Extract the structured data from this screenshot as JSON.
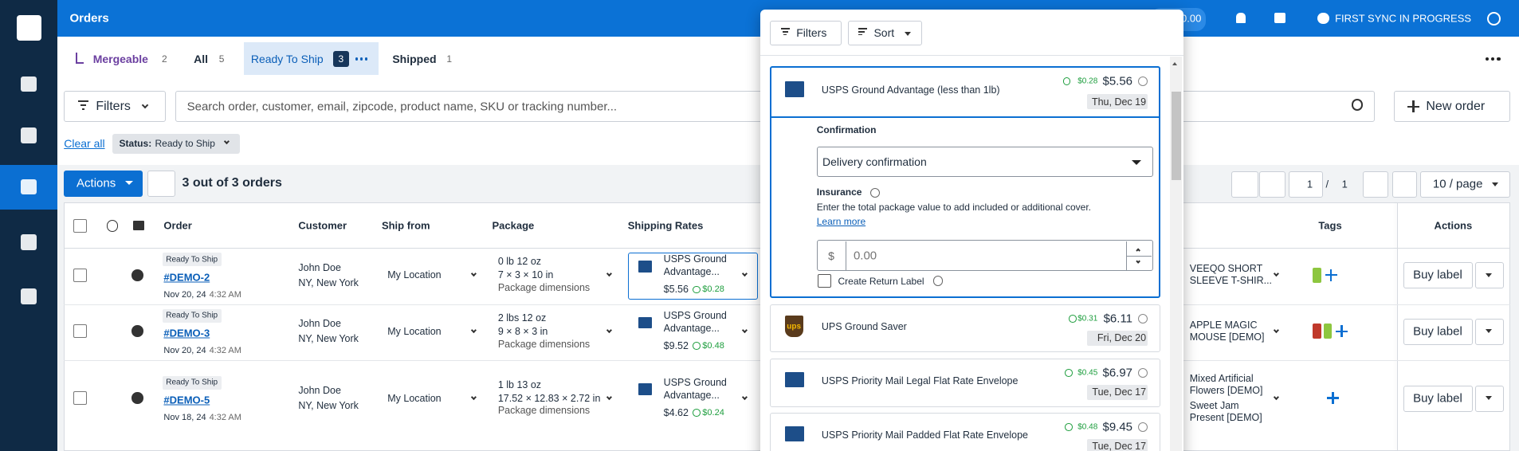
{
  "topbar": {
    "title": "Orders",
    "balance": "0.00",
    "sync_status": "FIRST SYNC IN PROGRESS"
  },
  "tabs": [
    {
      "label": "Mergeable",
      "count": 2
    },
    {
      "label": "All",
      "count": 5
    },
    {
      "label": "Ready To Ship",
      "count": 3
    },
    {
      "label": "Shipped",
      "count": 1
    }
  ],
  "toolbar": {
    "filters": "Filters",
    "search_placeholder": "Search order, customer, email, zipcode, product name, SKU or tracking number...",
    "new_order": "New order"
  },
  "active_filters": {
    "clear_all": "Clear all",
    "status_label": "Status:",
    "status_value": "Ready to Ship"
  },
  "list_bar": {
    "actions": "Actions",
    "summary": "3 out of 3 orders",
    "page": 1,
    "separator": "/",
    "page_count": 1,
    "page_size": "10 / page"
  },
  "table": {
    "columns": {
      "order": "Order",
      "customer": "Customer",
      "ship_from": "Ship from",
      "package": "Package",
      "shipping_rates": "Shipping Rates",
      "tags": "Tags",
      "actions": "Actions"
    },
    "rows": [
      {
        "status": "Ready To Ship",
        "order": "#DEMO-2",
        "date": "Nov 20, 24",
        "time": "4:32 AM",
        "customer": "John Doe",
        "location": "NY, New York",
        "ship_from": "My Location",
        "weight": "0 lb 12 oz",
        "dimensions": "7 × 3 × 10 in",
        "dimensions_label": "Package dimensions",
        "rate_service": "USPS Ground Advantage...",
        "rate_price": "$5.56",
        "rate_rebate": "$0.28",
        "products": [
          "VEEQO SHORT SLEEVE T-SHIR..."
        ],
        "button": "Buy label"
      },
      {
        "status": "Ready To Ship",
        "order": "#DEMO-3",
        "date": "Nov 20, 24",
        "time": "4:32 AM",
        "customer": "John Doe",
        "location": "NY, New York",
        "ship_from": "My Location",
        "weight": "2 lbs 12 oz",
        "dimensions": "9 × 8 × 3 in",
        "dimensions_label": "Package dimensions",
        "rate_service": "USPS Ground Advantage...",
        "rate_price": "$9.52",
        "rate_rebate": "$0.48",
        "products": [
          "APPLE MAGIC MOUSE [DEMO]"
        ],
        "button": "Buy label"
      },
      {
        "status": "Ready To Ship",
        "order": "#DEMO-5",
        "date": "Nov 18, 24",
        "time": "4:32 AM",
        "customer": "John Doe",
        "location": "NY, New York",
        "ship_from": "My Location",
        "weight": "1 lb 13 oz",
        "dimensions": "17.52 × 12.83 × 2.72 in",
        "dimensions_label": "Package dimensions",
        "rate_service": "USPS Ground Advantage...",
        "rate_price": "$4.62",
        "rate_rebate": "$0.24",
        "products": [
          "Mixed Artificial Flowers [DEMO]",
          "Sweet Jam Present [DEMO]"
        ],
        "button": "Buy label"
      }
    ]
  },
  "rate_panel": {
    "filters": "Filters",
    "sort": "Sort",
    "options": [
      {
        "name": "USPS Ground Advantage (less than 1lb)",
        "rebate": "$0.28",
        "price": "$5.56",
        "date": "Thu, Dec 19"
      },
      {
        "logo": "ups",
        "name": "UPS Ground Saver",
        "rebate": "$0.31",
        "price": "$6.11",
        "date": "Fri, Dec 20"
      },
      {
        "name": "USPS Priority Mail Legal Flat Rate Envelope",
        "rebate": "$0.45",
        "price": "$6.97",
        "date": "Tue, Dec 17"
      },
      {
        "name": "USPS Priority Mail Padded Flat Rate Envelope",
        "rebate": "$0.48",
        "price": "$9.45",
        "date": "Tue, Dec 17"
      }
    ],
    "details": {
      "confirmation_label": "Confirmation",
      "confirmation_value": "Delivery confirmation",
      "insurance_label": "Insurance",
      "insurance_help": "Enter the total package value to add included or additional cover.",
      "learn_more": "Learn more",
      "currency": "$",
      "value_placeholder": "0.00",
      "return_label": "Create Return Label"
    }
  }
}
